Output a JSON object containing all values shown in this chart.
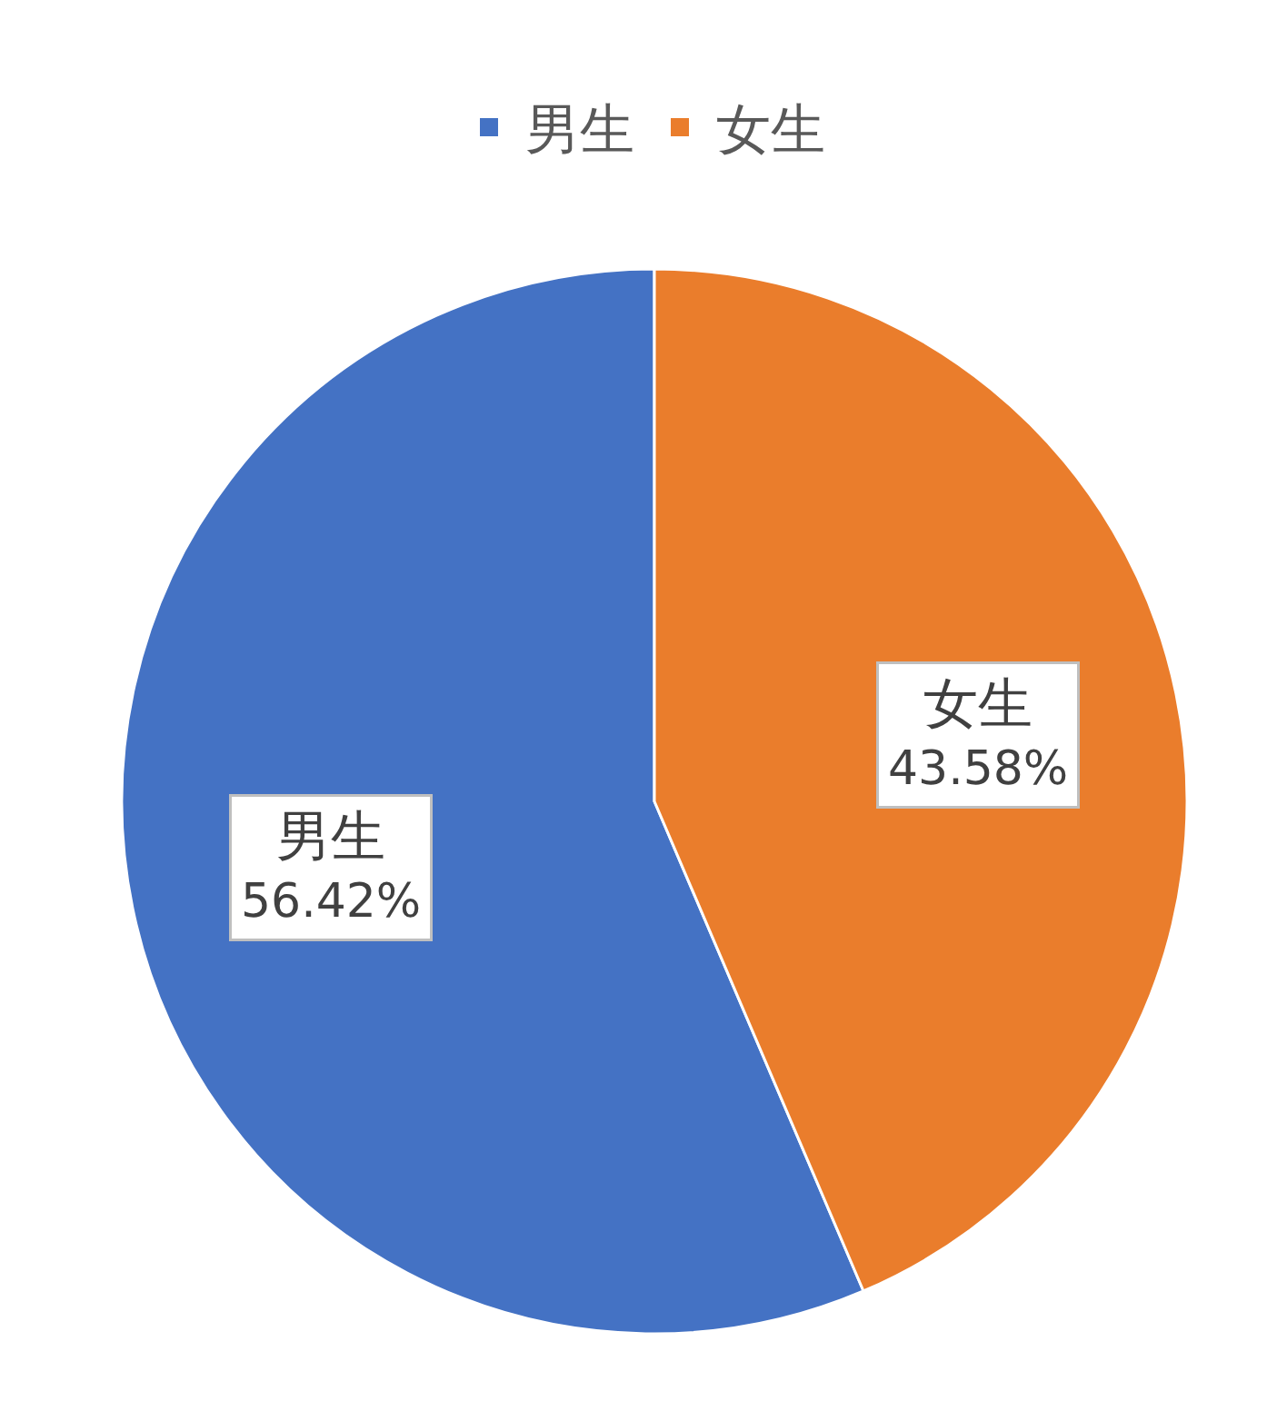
{
  "chart_data": {
    "type": "pie",
    "categories": [
      "男生",
      "女生"
    ],
    "values": [
      56.42,
      43.58
    ],
    "colors": [
      "#4472c4",
      "#ea7d2c"
    ],
    "value_labels": [
      "56.42%",
      "43.58%"
    ],
    "legend": "top"
  }
}
